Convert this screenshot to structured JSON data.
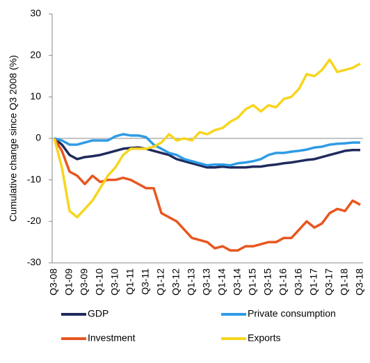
{
  "chart_data": {
    "type": "line",
    "y_label": "Cumulative change since Q3 2008 (%)",
    "categories": [
      "Q3-08",
      null,
      "Q1-09",
      null,
      "Q3-09",
      null,
      "Q1-10",
      null,
      "Q3-10",
      null,
      "Q1-11",
      null,
      "Q3-11",
      null,
      "Q1-12",
      null,
      "Q3-12",
      null,
      "Q1-13",
      null,
      "Q3-13",
      null,
      "Q1-14",
      null,
      "Q3-14",
      null,
      "Q1-15",
      null,
      "Q3-15",
      null,
      "Q1-16",
      null,
      "Q3-16",
      null,
      "Q1-17",
      null,
      "Q3-17",
      null,
      "Q1-18",
      null,
      "Q3-18"
    ],
    "series": [
      {
        "name": "GDP",
        "color": "#1f2a5c",
        "values": [
          0,
          -1.5,
          -4,
          -5,
          -4.5,
          -4.3,
          -4,
          -3.5,
          -3,
          -2.5,
          -2.3,
          -2.2,
          -2.5,
          -3,
          -3.5,
          -4,
          -5,
          -5.5,
          -6,
          -6.5,
          -7,
          -7,
          -6.8,
          -7,
          -7,
          -7,
          -6.8,
          -6.8,
          -6.5,
          -6.3,
          -6,
          -5.8,
          -5.5,
          -5.2,
          -5,
          -4.5,
          -4,
          -3.5,
          -3,
          -2.8,
          -2.8
        ]
      },
      {
        "name": "Private consumption",
        "color": "#2e9be6",
        "values": [
          0,
          -0.5,
          -1.5,
          -1.5,
          -1,
          -0.5,
          -0.5,
          -0.5,
          0.5,
          1,
          0.7,
          0.7,
          0.3,
          -1.5,
          -2.5,
          -3.5,
          -4,
          -5,
          -5.5,
          -6,
          -6.5,
          -6.3,
          -6.3,
          -6.5,
          -6,
          -5.8,
          -5.5,
          -5,
          -4,
          -3.5,
          -3.5,
          -3.2,
          -3,
          -2.7,
          -2.2,
          -2,
          -1.5,
          -1.3,
          -1.2,
          -1,
          -1
        ]
      },
      {
        "name": "Investment",
        "color": "#e8561f",
        "values": [
          0,
          -3,
          -8,
          -9,
          -11,
          -9,
          -10.5,
          -10,
          -10,
          -9.5,
          -10,
          -11,
          -12,
          -12,
          -18,
          -19,
          -20,
          -22,
          -24,
          -24.5,
          -25,
          -26.5,
          -26,
          -27,
          -27,
          -26,
          -26,
          -25.5,
          -25,
          -25,
          -24,
          -24,
          -22,
          -20,
          -21.5,
          -20.5,
          -18,
          -17,
          -17.5,
          -15,
          -16
        ]
      },
      {
        "name": "Exports",
        "color": "#f7d51d",
        "values": [
          0,
          -7,
          -17.5,
          -19,
          -17,
          -15,
          -12,
          -9,
          -7,
          -4,
          -2.5,
          -2.5,
          -2.5,
          -2,
          -1,
          1,
          -0.5,
          0,
          -0.5,
          1.5,
          1,
          2,
          2.5,
          4,
          5,
          7,
          8,
          6.5,
          8,
          7.5,
          9.5,
          10,
          12,
          15.5,
          15,
          16.5,
          19,
          16,
          16.5,
          17,
          18
        ]
      }
    ],
    "ylim": [
      -30,
      30
    ],
    "yticks": [
      30,
      20,
      10,
      0,
      -10,
      -20,
      -30
    ],
    "grid": false
  }
}
